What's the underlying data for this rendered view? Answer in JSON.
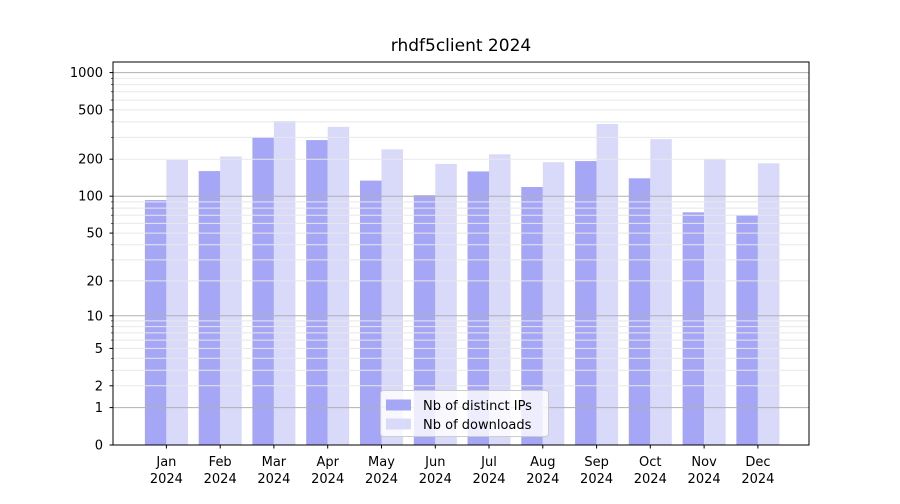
{
  "chart_data": {
    "type": "bar",
    "title": "rhdf5client 2024",
    "categories": [
      "Jan",
      "Feb",
      "Mar",
      "Apr",
      "May",
      "Jun",
      "Jul",
      "Aug",
      "Sep",
      "Oct",
      "Nov",
      "Dec"
    ],
    "category_year": "2024",
    "series": [
      {
        "name": "Nb of distinct IPs",
        "color": "#a6a6f6",
        "values": [
          93,
          160,
          300,
          285,
          134,
          102,
          159,
          119,
          193,
          140,
          74,
          70
        ]
      },
      {
        "name": "Nb of downloads",
        "color": "#d9d9fa",
        "values": [
          197,
          210,
          407,
          365,
          240,
          183,
          219,
          189,
          385,
          290,
          199,
          185
        ]
      }
    ],
    "yscale": "log1p",
    "ylim": [
      0,
      1200
    ],
    "yticks": [
      0,
      1,
      2,
      5,
      10,
      20,
      50,
      100,
      200,
      500,
      1000
    ],
    "major_grid_values": [
      1,
      10,
      100,
      1000
    ],
    "grid": true,
    "legend_position": "inside-bottom-center",
    "colors": {
      "major_grid": "#b0b0b0",
      "minor_grid": "#e8e8e8",
      "spine": "#000000",
      "text": "#000000",
      "legend_border": "#cccccc",
      "legend_bg": "rgba(255,255,255,0.8)"
    }
  }
}
